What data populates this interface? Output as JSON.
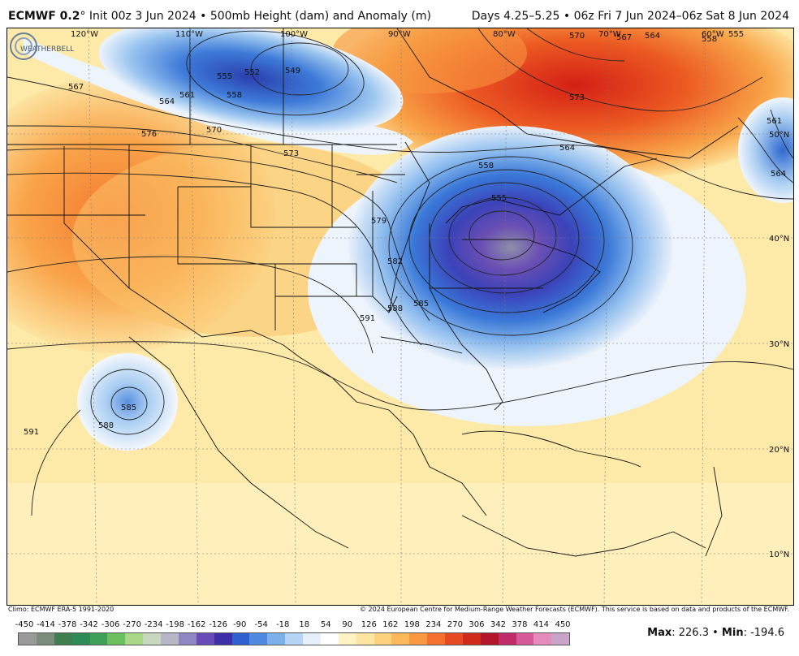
{
  "header": {
    "model": "ECMWF 0.2",
    "init": "° Init 00z 3 Jun 2024 • 500mb Height (dam) and Anomaly (m)",
    "valid": "Days 4.25–5.25 • 06z Fri 7 Jun 2024–06z Sat 8 Jun 2024"
  },
  "map": {
    "longitude_labels": [
      "120°W",
      "110°W",
      "100°W",
      "90°W",
      "80°W",
      "70°W",
      "60°W"
    ],
    "latitude_labels": [
      "50°N",
      "40°N",
      "30°N",
      "20°N",
      "10°N"
    ],
    "contour_labels": [
      "567",
      "564",
      "561",
      "555",
      "552",
      "549",
      "558",
      "570",
      "576",
      "573",
      "564",
      "558",
      "555",
      "579",
      "582",
      "588",
      "585",
      "591",
      "585",
      "588",
      "591",
      "570",
      "573",
      "567",
      "564",
      "561",
      "558",
      "555",
      "564"
    ],
    "logo_text": "WEATHERBELL"
  },
  "footer": {
    "climo": "Climo: ECMWF ERA-5 1991-2020",
    "copyright": "© 2024 European Centre for Medium-Range Weather Forecasts (ECMWF). This service is based on data and products of the ECMWF."
  },
  "colorbar": {
    "ticks": [
      "-450",
      "-414",
      "-378",
      "-342",
      "-306",
      "-270",
      "-234",
      "-198",
      "-162",
      "-126",
      "-90",
      "-54",
      "-18",
      "18",
      "54",
      "90",
      "126",
      "162",
      "198",
      "234",
      "270",
      "306",
      "342",
      "378",
      "414",
      "450"
    ],
    "colors": [
      "#9a9a9a",
      "#7c8c7a",
      "#3f7f4f",
      "#2e8b57",
      "#3fa05a",
      "#6bbf5e",
      "#a9d889",
      "#c7d7c0",
      "#b7b7c8",
      "#8f86c4",
      "#6a4cb8",
      "#3c2fa8",
      "#2f5fd0",
      "#4d8ae0",
      "#7bb0ea",
      "#b6d4f4",
      "#e6f0fb",
      "#ffffff",
      "#fff3c4",
      "#fde6a2",
      "#fdd27c",
      "#fcb95c",
      "#f99a43",
      "#f3702f",
      "#e54a22",
      "#cf2a1a",
      "#b3152a",
      "#c02b6a",
      "#d65a9a",
      "#e68cbd",
      "#c9a4c9"
    ],
    "max_label": "Max",
    "max_value": ": 226.3 • ",
    "min_label": "Min",
    "min_value": ": -194.6"
  }
}
